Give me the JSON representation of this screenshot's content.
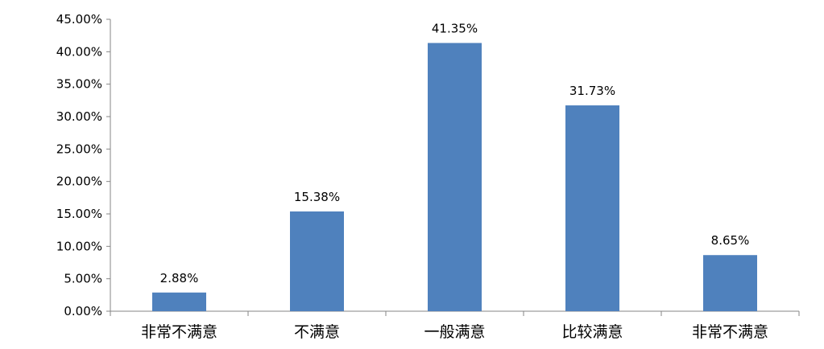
{
  "chart_data": {
    "type": "bar",
    "categories": [
      "非常不满意",
      "不满意",
      "一般满意",
      "比较满意",
      "非常不满意"
    ],
    "values": [
      2.88,
      15.38,
      41.35,
      31.73,
      8.65
    ],
    "data_labels": [
      "2.88%",
      "15.38%",
      "41.35%",
      "31.73%",
      "8.65%"
    ],
    "y_ticks": [
      "0.00%",
      "5.00%",
      "10.00%",
      "15.00%",
      "20.00%",
      "25.00%",
      "30.00%",
      "35.00%",
      "40.00%",
      "45.00%"
    ],
    "ylim": [
      0,
      45
    ],
    "grid": false,
    "bar_color": "#4f81bd",
    "axis_color": "#868686"
  }
}
